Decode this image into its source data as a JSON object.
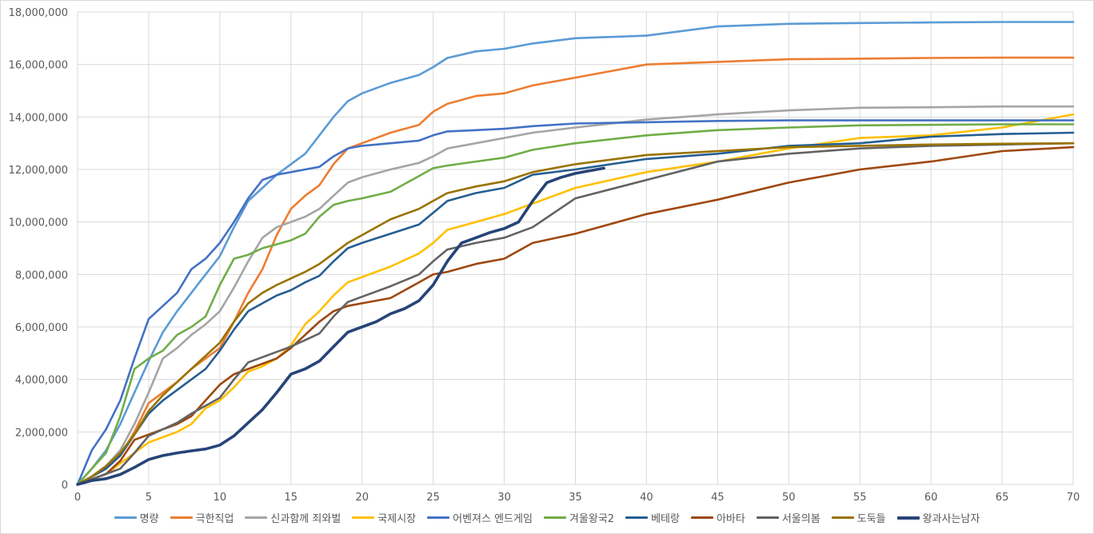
{
  "chart_data": {
    "type": "line",
    "title": "",
    "xlabel": "",
    "ylabel": "",
    "xlim": [
      0,
      70
    ],
    "ylim": [
      0,
      18000000
    ],
    "x_ticks": [
      0,
      5,
      10,
      15,
      20,
      25,
      30,
      35,
      40,
      45,
      50,
      55,
      60,
      65,
      70
    ],
    "y_ticks": [
      0,
      2000000,
      4000000,
      6000000,
      8000000,
      10000000,
      12000000,
      14000000,
      16000000,
      18000000
    ],
    "y_tick_labels": [
      "0",
      "2,000,000",
      "4,000,000",
      "6,000,000",
      "8,000,000",
      "10,000,000",
      "12,000,000",
      "14,000,000",
      "16,000,000",
      "18,000,000"
    ],
    "grid": true,
    "legend_position": "bottom",
    "x": [
      0,
      1,
      2,
      3,
      4,
      5,
      6,
      7,
      8,
      9,
      10,
      11,
      12,
      13,
      14,
      15,
      16,
      17,
      18,
      19,
      20,
      22,
      24,
      25,
      26,
      28,
      30,
      32,
      35,
      40,
      45,
      50,
      55,
      60,
      65,
      70
    ],
    "series": [
      {
        "name": "명량",
        "color": "#5B9BD5",
        "values": [
          0,
          0.6,
          1.3,
          2.3,
          3.5,
          4.7,
          5.8,
          6.6,
          7.3,
          8.0,
          8.7,
          9.8,
          10.8,
          11.3,
          11.8,
          12.2,
          12.6,
          13.3,
          14.0,
          14.6,
          14.9,
          15.3,
          15.6,
          15.9,
          16.25,
          16.5,
          16.6,
          16.8,
          17.0,
          17.1,
          17.45,
          17.55,
          17.58,
          17.6,
          17.62,
          17.62
        ]
      },
      {
        "name": "극한직업",
        "color": "#ED7D31",
        "values": [
          0,
          0.3,
          0.6,
          1.1,
          2.0,
          3.1,
          3.5,
          3.9,
          4.4,
          4.8,
          5.2,
          6.2,
          7.3,
          8.2,
          9.5,
          10.5,
          11.0,
          11.4,
          12.2,
          12.8,
          13.0,
          13.4,
          13.7,
          14.2,
          14.5,
          14.8,
          14.9,
          15.2,
          15.5,
          16.0,
          16.1,
          16.2,
          16.22,
          16.25,
          16.26,
          16.26
        ]
      },
      {
        "name": "신과함께 죄와벌",
        "color": "#A5A5A5",
        "values": [
          0,
          0.3,
          0.7,
          1.3,
          2.3,
          3.5,
          4.8,
          5.2,
          5.7,
          6.1,
          6.6,
          7.5,
          8.5,
          9.4,
          9.8,
          10.0,
          10.2,
          10.5,
          11.0,
          11.5,
          11.7,
          12.0,
          12.25,
          12.5,
          12.8,
          13.0,
          13.2,
          13.4,
          13.6,
          13.9,
          14.1,
          14.25,
          14.35,
          14.37,
          14.4,
          14.4
        ]
      },
      {
        "name": "국제시장",
        "color": "#FFC000",
        "values": [
          0,
          0.2,
          0.4,
          0.8,
          1.2,
          1.6,
          1.8,
          2.0,
          2.3,
          2.9,
          3.2,
          3.7,
          4.3,
          4.5,
          4.8,
          5.3,
          6.1,
          6.6,
          7.2,
          7.7,
          7.9,
          8.3,
          8.8,
          9.2,
          9.7,
          10.0,
          10.3,
          10.7,
          11.3,
          11.9,
          12.3,
          12.8,
          13.2,
          13.3,
          13.6,
          14.1
        ]
      },
      {
        "name": "어벤져스 엔드게임",
        "color": "#4472C4",
        "values": [
          0,
          1.3,
          2.1,
          3.2,
          4.8,
          6.3,
          6.8,
          7.3,
          8.2,
          8.6,
          9.2,
          10.0,
          10.9,
          11.6,
          11.8,
          11.9,
          12.0,
          12.1,
          12.5,
          12.8,
          12.9,
          13.0,
          13.1,
          13.3,
          13.45,
          13.5,
          13.55,
          13.65,
          13.75,
          13.8,
          13.85,
          13.87,
          13.87,
          13.87,
          13.87,
          13.87
        ]
      },
      {
        "name": "겨울왕국2",
        "color": "#70AD47",
        "values": [
          0,
          0.6,
          1.2,
          2.6,
          4.4,
          4.8,
          5.1,
          5.7,
          6.0,
          6.4,
          7.6,
          8.6,
          8.75,
          9.0,
          9.15,
          9.3,
          9.55,
          10.2,
          10.65,
          10.8,
          10.9,
          11.15,
          11.75,
          12.05,
          12.15,
          12.3,
          12.45,
          12.75,
          13.0,
          13.3,
          13.5,
          13.6,
          13.68,
          13.7,
          13.72,
          13.72
        ]
      },
      {
        "name": "베테랑",
        "color": "#255E91",
        "values": [
          0,
          0.3,
          0.6,
          1.1,
          1.9,
          2.7,
          3.2,
          3.6,
          4.0,
          4.4,
          5.1,
          5.9,
          6.6,
          6.9,
          7.2,
          7.4,
          7.7,
          7.95,
          8.5,
          9.0,
          9.2,
          9.55,
          9.9,
          10.35,
          10.8,
          11.1,
          11.3,
          11.8,
          12.0,
          12.4,
          12.6,
          12.9,
          13.0,
          13.25,
          13.35,
          13.4
        ]
      },
      {
        "name": "아바타",
        "color": "#9E480E",
        "values": [
          0,
          0.2,
          0.4,
          0.9,
          1.7,
          1.9,
          2.1,
          2.3,
          2.6,
          3.2,
          3.8,
          4.2,
          4.4,
          4.6,
          4.8,
          5.2,
          5.7,
          6.2,
          6.6,
          6.8,
          6.9,
          7.1,
          7.7,
          8.0,
          8.1,
          8.4,
          8.6,
          9.2,
          9.55,
          10.3,
          10.85,
          11.5,
          12.0,
          12.3,
          12.7,
          12.85
        ]
      },
      {
        "name": "서울의봄",
        "color": "#636363",
        "values": [
          0,
          0.2,
          0.4,
          0.6,
          1.2,
          1.85,
          2.1,
          2.35,
          2.7,
          3.0,
          3.3,
          4.0,
          4.65,
          4.85,
          5.05,
          5.25,
          5.5,
          5.75,
          6.4,
          6.95,
          7.15,
          7.55,
          8.0,
          8.5,
          8.95,
          9.2,
          9.4,
          9.8,
          10.9,
          11.6,
          12.3,
          12.6,
          12.8,
          12.9,
          12.95,
          13.0
        ]
      },
      {
        "name": "도둑들",
        "color": "#997300",
        "values": [
          0,
          0.3,
          0.7,
          1.2,
          1.9,
          2.8,
          3.4,
          3.9,
          4.4,
          4.9,
          5.4,
          6.2,
          6.9,
          7.3,
          7.6,
          7.85,
          8.1,
          8.4,
          8.8,
          9.2,
          9.5,
          10.1,
          10.5,
          10.8,
          11.1,
          11.35,
          11.55,
          11.9,
          12.2,
          12.55,
          12.7,
          12.85,
          12.9,
          12.95,
          12.98,
          13.0
        ]
      },
      {
        "name": "왕과사는남자",
        "color": "#264478",
        "thick": true,
        "x": [
          0,
          1,
          2,
          3,
          4,
          5,
          6,
          7,
          8,
          9,
          10,
          11,
          12,
          13,
          14,
          15,
          16,
          17,
          18,
          19,
          20,
          21,
          22,
          23,
          24,
          25,
          26,
          27,
          28,
          29,
          30,
          31,
          32,
          33,
          34,
          35,
          36,
          37
        ],
        "values": [
          0,
          0.15,
          0.22,
          0.38,
          0.65,
          0.95,
          1.1,
          1.2,
          1.28,
          1.35,
          1.5,
          1.85,
          2.35,
          2.85,
          3.5,
          4.2,
          4.4,
          4.7,
          5.25,
          5.8,
          6.0,
          6.2,
          6.5,
          6.7,
          7.0,
          7.6,
          8.5,
          9.2,
          9.4,
          9.6,
          9.75,
          10.0,
          10.8,
          11.5,
          11.7,
          11.85,
          11.95,
          12.05
        ]
      }
    ],
    "value_unit": "millions"
  }
}
